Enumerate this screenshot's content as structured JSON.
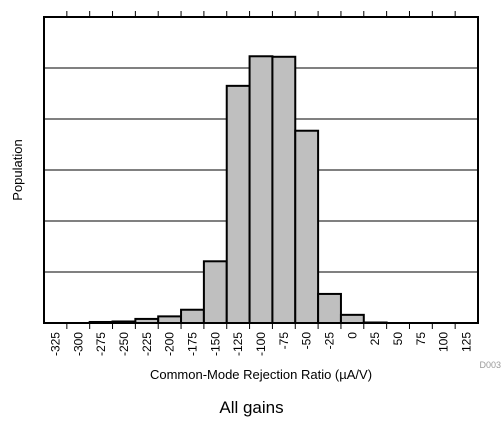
{
  "chart_data": {
    "type": "bar",
    "subtype": "histogram",
    "bin_width": 25,
    "bins": [
      {
        "center": -300,
        "value": 0
      },
      {
        "center": -275,
        "value": 0.2
      },
      {
        "center": -250,
        "value": 0.3
      },
      {
        "center": -225,
        "value": 0.8
      },
      {
        "center": -200,
        "value": 1.3
      },
      {
        "center": -175,
        "value": 2.6
      },
      {
        "center": -150,
        "value": 12.1
      },
      {
        "center": -125,
        "value": 46.5
      },
      {
        "center": -100,
        "value": 52.3
      },
      {
        "center": -75,
        "value": 52.2
      },
      {
        "center": -50,
        "value": 37.7
      },
      {
        "center": -25,
        "value": 5.7
      },
      {
        "center": 0,
        "value": 1.6
      },
      {
        "center": 25,
        "value": 0.1
      },
      {
        "center": 50,
        "value": 0
      },
      {
        "center": 75,
        "value": 0
      },
      {
        "center": 100,
        "value": 0
      }
    ],
    "x_ticks": [
      -325,
      -300,
      -275,
      -250,
      -225,
      -200,
      -175,
      -150,
      -125,
      -100,
      -75,
      -50,
      -25,
      0,
      25,
      50,
      75,
      100,
      125
    ],
    "xlim": [
      -337.5,
      137.5
    ],
    "ylim": [
      0,
      60
    ],
    "y_gridlines": [
      10,
      20,
      30,
      40,
      50
    ],
    "xlabel": "Common-Mode Rejection Ratio (µA/V)",
    "ylabel": "Population",
    "y_tick_labels": false,
    "bar_fill": "#bfbfbf",
    "bar_stroke": "#000000",
    "grid": true
  },
  "figure_code": "D003",
  "caption": "All gains"
}
